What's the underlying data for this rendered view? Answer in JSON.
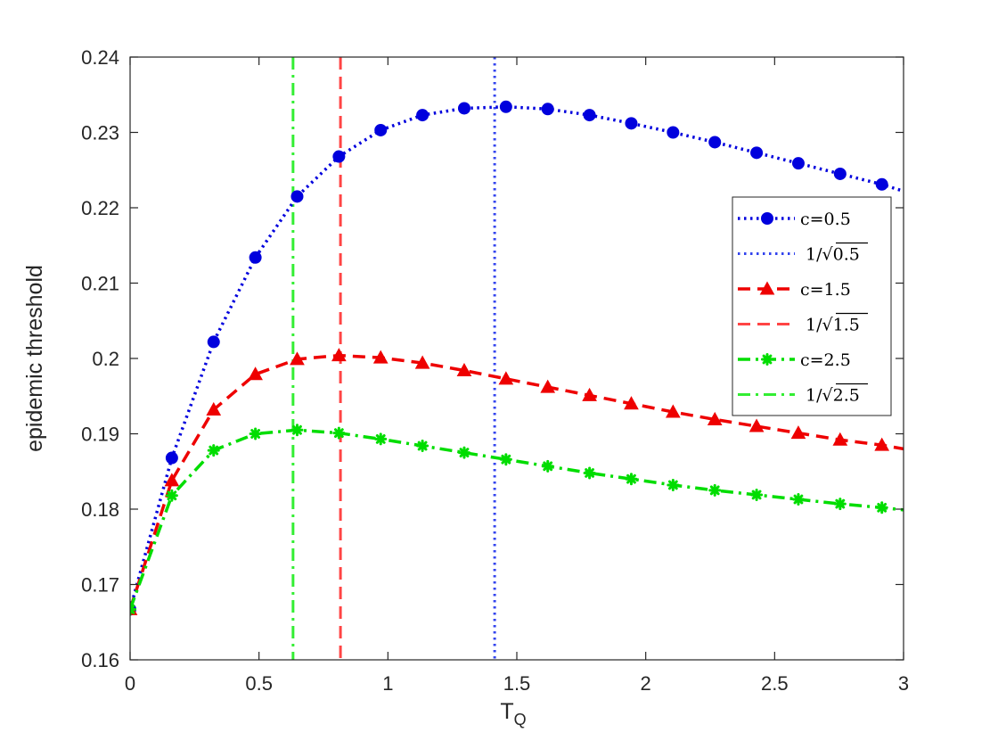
{
  "chart_data": {
    "type": "line",
    "xlabel": "T",
    "xlabel_sub": "Q",
    "ylabel": "epidemic threshold",
    "xlim": [
      0,
      3
    ],
    "ylim": [
      0.16,
      0.24
    ],
    "x_ticks": [
      0,
      0.5,
      1,
      1.5,
      2,
      2.5,
      3
    ],
    "x_tick_labels": [
      "0",
      "0.5",
      "1",
      "1.5",
      "2",
      "2.5",
      "3"
    ],
    "y_ticks": [
      0.16,
      0.17,
      0.18,
      0.19,
      0.2,
      0.21,
      0.22,
      0.23,
      0.24
    ],
    "y_tick_labels": [
      "0.16",
      "0.17",
      "0.18",
      "0.19",
      "0.2",
      "0.21",
      "0.22",
      "0.23",
      "0.24"
    ],
    "grid": false,
    "legend_position": "right",
    "x": [
      0,
      0.162,
      0.324,
      0.486,
      0.648,
      0.81,
      0.972,
      1.134,
      1.296,
      1.458,
      1.62,
      1.782,
      1.944,
      2.106,
      2.268,
      2.43,
      2.592,
      2.754,
      2.916
    ],
    "series": [
      {
        "name": "c=0.5",
        "color": "#0000dd",
        "line_style": "dotted",
        "marker": "circle",
        "values": [
          0.1667,
          0.1868,
          0.2022,
          0.2134,
          0.2215,
          0.2268,
          0.2303,
          0.2323,
          0.2332,
          0.2334,
          0.2331,
          0.2323,
          0.2312,
          0.23,
          0.2287,
          0.2273,
          0.2259,
          0.2245,
          0.2231
        ],
        "end_value": 0.2222
      },
      {
        "name": "c=1.5",
        "color": "#ee0000",
        "line_style": "dashed",
        "marker": "triangle",
        "values": [
          0.1667,
          0.1838,
          0.1932,
          0.1979,
          0.1999,
          0.2004,
          0.2001,
          0.1994,
          0.1984,
          0.1973,
          0.1962,
          0.1951,
          0.194,
          0.1929,
          0.1919,
          0.191,
          0.1901,
          0.1892,
          0.1885
        ],
        "end_value": 0.188
      },
      {
        "name": "c=2.5",
        "color": "#00dd00",
        "line_style": "dashdot",
        "marker": "star",
        "values": [
          0.1667,
          0.1818,
          0.1878,
          0.19,
          0.1905,
          0.1901,
          0.1893,
          0.1884,
          0.1875,
          0.1866,
          0.1857,
          0.1848,
          0.184,
          0.1832,
          0.1825,
          0.1819,
          0.1813,
          0.1807,
          0.1802
        ],
        "end_value": 0.1799
      }
    ],
    "vlines": [
      {
        "name": "1/√0.5",
        "radicand": "0.5",
        "x": 1.414,
        "color": "#3344ee",
        "line_style": "dotted"
      },
      {
        "name": "1/√1.5",
        "radicand": "1.5",
        "x": 0.816,
        "color": "#ff4444",
        "line_style": "dashed"
      },
      {
        "name": "1/√2.5",
        "radicand": "2.5",
        "x": 0.632,
        "color": "#33ee33",
        "line_style": "dashdot"
      }
    ],
    "legend": [
      {
        "label": "c=0.5",
        "kind": "series",
        "ref": 0
      },
      {
        "label": "1/√0.5",
        "kind": "vline",
        "ref": 0
      },
      {
        "label": "c=1.5",
        "kind": "series",
        "ref": 1
      },
      {
        "label": "1/√1.5",
        "kind": "vline",
        "ref": 1
      },
      {
        "label": "c=2.5",
        "kind": "series",
        "ref": 2
      },
      {
        "label": "1/√2.5",
        "kind": "vline",
        "ref": 2
      }
    ]
  }
}
